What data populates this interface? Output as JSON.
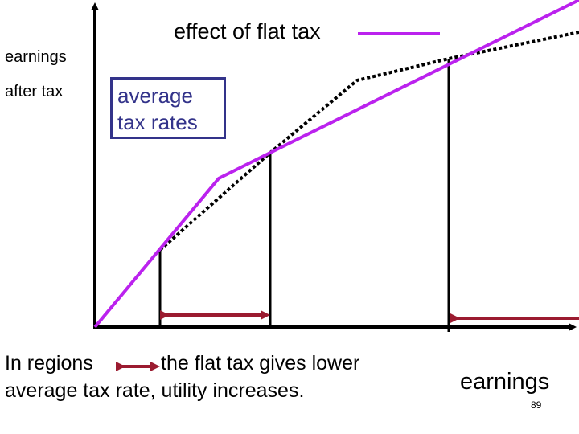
{
  "diagram": {
    "legend": {
      "label": "effect of flat tax",
      "color": "#bb22ee"
    },
    "y_axis_label": [
      "earnings",
      "after tax"
    ],
    "x_axis_label": "earnings",
    "annotation_box": [
      "average",
      "tax rates"
    ],
    "caption": {
      "lead": "In regions",
      "rest": "the flat tax gives lower",
      "line2": "average tax rate, utility increases."
    },
    "page_number": "89",
    "colors": {
      "flat_tax_line": "#bb22ee",
      "progressive_line": "#000000",
      "region_arrow": "#9b1b30",
      "box_border": "#33338a"
    }
  }
}
